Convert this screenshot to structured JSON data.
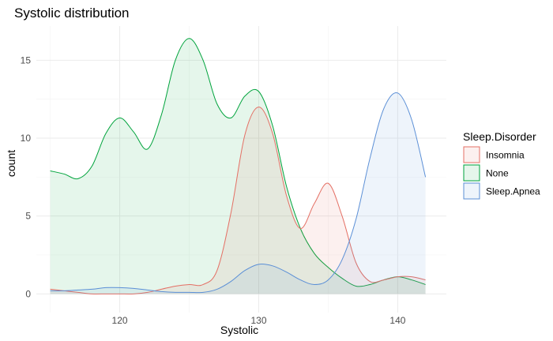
{
  "chart_data": {
    "type": "area",
    "title": "Systolic distribution",
    "xlabel": "Systolic",
    "ylabel": "count",
    "xlim": [
      114,
      143.5
    ],
    "ylim": [
      -1.2,
      17.2
    ],
    "xticks": [
      120,
      130,
      140
    ],
    "yticks": [
      0,
      5,
      10,
      15
    ],
    "grid": true,
    "legend": {
      "title": "Sleep.Disorder",
      "position": "right"
    },
    "series": [
      {
        "name": "None",
        "color": "#00a33c",
        "fill": "#e3f6e8",
        "points": [
          [
            115,
            7.9
          ],
          [
            116,
            7.7
          ],
          [
            117,
            7.4
          ],
          [
            118,
            8.2
          ],
          [
            119,
            10.3
          ],
          [
            120,
            11.3
          ],
          [
            121,
            10.4
          ],
          [
            122,
            9.3
          ],
          [
            123,
            11.5
          ],
          [
            124,
            15.0
          ],
          [
            125,
            16.4
          ],
          [
            126,
            15.0
          ],
          [
            127,
            12.2
          ],
          [
            128,
            11.3
          ],
          [
            129,
            12.7
          ],
          [
            130,
            13.0
          ],
          [
            131,
            10.8
          ],
          [
            132,
            6.9
          ],
          [
            133,
            4.2
          ],
          [
            134,
            2.6
          ],
          [
            135,
            1.7
          ],
          [
            136,
            1.0
          ],
          [
            137,
            0.5
          ],
          [
            138,
            0.6
          ],
          [
            139,
            0.9
          ],
          [
            140,
            1.1
          ],
          [
            141,
            0.9
          ],
          [
            142,
            0.6
          ]
        ]
      },
      {
        "name": "Insomnia",
        "color": "#e46f64",
        "fill": "#fdeaea",
        "points": [
          [
            115,
            0.3
          ],
          [
            116,
            0.2
          ],
          [
            117,
            0.1
          ],
          [
            118,
            0.0
          ],
          [
            119,
            0.0
          ],
          [
            120,
            0.0
          ],
          [
            121,
            0.0
          ],
          [
            122,
            0.1
          ],
          [
            123,
            0.3
          ],
          [
            124,
            0.5
          ],
          [
            125,
            0.6
          ],
          [
            126,
            0.6
          ],
          [
            127,
            1.5
          ],
          [
            128,
            5.2
          ],
          [
            129,
            10.2
          ],
          [
            130,
            12.0
          ],
          [
            131,
            10.3
          ],
          [
            132,
            6.3
          ],
          [
            133,
            4.2
          ],
          [
            134,
            5.8
          ],
          [
            135,
            7.1
          ],
          [
            136,
            5.0
          ],
          [
            137,
            2.0
          ],
          [
            138,
            0.8
          ],
          [
            139,
            0.9
          ],
          [
            140,
            1.1
          ],
          [
            141,
            1.1
          ],
          [
            142,
            0.9
          ]
        ]
      },
      {
        "name": "Sleep.Apnea",
        "color": "#5b8fd6",
        "fill": "#e9f1fc",
        "points": [
          [
            115,
            0.2
          ],
          [
            116,
            0.2
          ],
          [
            117,
            0.25
          ],
          [
            118,
            0.3
          ],
          [
            119,
            0.4
          ],
          [
            120,
            0.4
          ],
          [
            121,
            0.35
          ],
          [
            122,
            0.25
          ],
          [
            123,
            0.15
          ],
          [
            124,
            0.1
          ],
          [
            125,
            0.1
          ],
          [
            126,
            0.1
          ],
          [
            127,
            0.3
          ],
          [
            128,
            0.8
          ],
          [
            129,
            1.5
          ],
          [
            130,
            1.9
          ],
          [
            131,
            1.8
          ],
          [
            132,
            1.4
          ],
          [
            133,
            0.9
          ],
          [
            134,
            0.6
          ],
          [
            135,
            0.9
          ],
          [
            136,
            2.2
          ],
          [
            137,
            4.8
          ],
          [
            138,
            8.7
          ],
          [
            139,
            11.9
          ],
          [
            140,
            12.9
          ],
          [
            141,
            11.2
          ],
          [
            142,
            7.5
          ]
        ]
      }
    ]
  }
}
